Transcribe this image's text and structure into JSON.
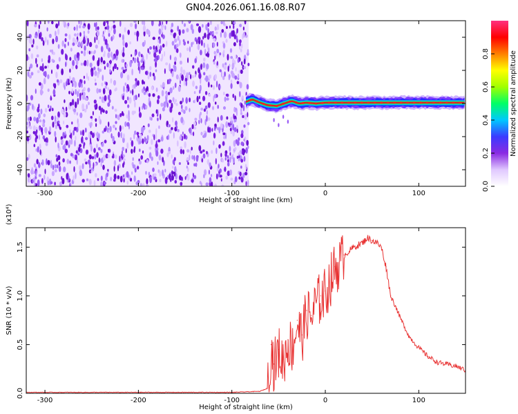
{
  "title": "GN04.2026.061.16.08.R07",
  "colors": {
    "snr_line": "#e83232",
    "noise_purple": "#7a1fe0",
    "axis": "#000000"
  },
  "chart_data": [
    {
      "type": "heatmap",
      "xlabel": "Height of straight line (km)",
      "ylabel": "Frequency (Hz)",
      "xlim": [
        -320,
        150
      ],
      "ylim": [
        -50,
        50
      ],
      "x_ticks": [
        -300,
        -200,
        -100,
        0,
        100
      ],
      "x_tick_labels": [
        "-300",
        "-200",
        "-100",
        "0",
        "100"
      ],
      "y_ticks": [
        -40,
        -20,
        0,
        20,
        40
      ],
      "y_tick_labels": [
        "-40",
        "-20",
        "0",
        "20",
        "40"
      ],
      "noise_region_x": [
        -320,
        -82
      ],
      "signal_region_x": [
        -85,
        150
      ],
      "signal_trace": [
        {
          "x": -85,
          "y": 1.0
        },
        {
          "x": -78,
          "y": 2.5
        },
        {
          "x": -70,
          "y": 0.5
        },
        {
          "x": -62,
          "y": -1.0
        },
        {
          "x": -52,
          "y": -1.5
        },
        {
          "x": -44,
          "y": 0.0
        },
        {
          "x": -36,
          "y": 1.5
        },
        {
          "x": -28,
          "y": 0.0
        },
        {
          "x": -20,
          "y": 0.5
        },
        {
          "x": -10,
          "y": 0.0
        },
        {
          "x": 0,
          "y": 0.5
        },
        {
          "x": 20,
          "y": 0.5
        },
        {
          "x": 50,
          "y": 0.5
        },
        {
          "x": 100,
          "y": 0.5
        },
        {
          "x": 150,
          "y": 0.5
        }
      ]
    },
    {
      "type": "colorbar",
      "label": "Normalized spectral amplitude",
      "range": [
        0,
        1
      ],
      "ticks": [
        0.0,
        0.2,
        0.4,
        0.6,
        0.8
      ],
      "tick_labels": [
        "0.0",
        "0.2",
        "0.4",
        "0.6",
        "0.8"
      ],
      "colormap": [
        "#ffffff",
        "#e0c8ff",
        "#8a2be2",
        "#3b3bff",
        "#00c8ff",
        "#00ff66",
        "#a0ff00",
        "#ffff00",
        "#ff8000",
        "#ff0000",
        "#ff3080"
      ]
    },
    {
      "type": "line",
      "xlabel": "Height of straight line (km)",
      "ylabel": "SNR (10 * v/v)",
      "y_multiplier": "(x10⁴)",
      "xlim": [
        -320,
        150
      ],
      "ylim": [
        0,
        1.7
      ],
      "x_ticks": [
        -300,
        -200,
        -100,
        0,
        100
      ],
      "x_tick_labels": [
        "-300",
        "-200",
        "-100",
        "0",
        "100"
      ],
      "y_ticks": [
        0.0,
        0.5,
        1.0,
        1.5
      ],
      "y_tick_labels": [
        "0.0",
        "0.5",
        "1.0",
        "1.5"
      ],
      "series": [
        {
          "x": [
            -320,
            -200,
            -100,
            -70,
            -62,
            -58,
            -55,
            -50,
            -45,
            -40,
            -35,
            -30,
            -25,
            -20,
            -15,
            -10,
            -5,
            0,
            10,
            20,
            30,
            40,
            45,
            50,
            55,
            60,
            65,
            70,
            75,
            80,
            90,
            100,
            110,
            120,
            130,
            140,
            150
          ],
          "values": [
            0.01,
            0.01,
            0.01,
            0.02,
            0.05,
            0.5,
            0.3,
            0.45,
            0.35,
            0.55,
            0.5,
            0.75,
            0.6,
            0.85,
            0.8,
            0.95,
            1.0,
            1.05,
            1.3,
            1.42,
            1.5,
            1.55,
            1.6,
            1.57,
            1.55,
            1.5,
            1.3,
            1.0,
            0.9,
            0.78,
            0.58,
            0.47,
            0.38,
            0.32,
            0.3,
            0.28,
            0.24
          ]
        }
      ]
    }
  ]
}
